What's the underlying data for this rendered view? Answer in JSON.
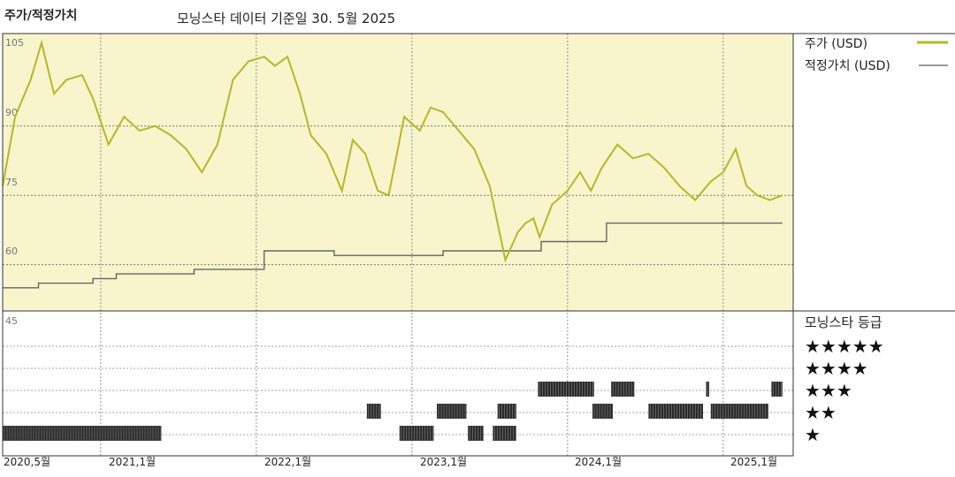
{
  "chart_data": {
    "type": "line",
    "title": "주가/적정가치",
    "subtitle": "모닝스타 데이터 기준일 30. 5월 2025",
    "ylim": [
      45,
      110
    ],
    "y_ticks": [
      "105",
      "90",
      "75",
      "60",
      "45"
    ],
    "x_ticks": [
      "2020,5월",
      "2021,1월",
      "2022,1월",
      "2023,1월",
      "2024,1월",
      "2025,1월"
    ],
    "legend": [
      {
        "label": "주가 (USD)",
        "color": "#b5b82a"
      },
      {
        "label": "적정가치 (USD)",
        "color": "#777777"
      }
    ],
    "price": {
      "name": "주가 (USD)",
      "x": [
        2020.37,
        2020.45,
        2020.55,
        2020.62,
        2020.7,
        2020.78,
        2020.88,
        2020.95,
        2021.05,
        2021.15,
        2021.25,
        2021.35,
        2021.45,
        2021.55,
        2021.65,
        2021.75,
        2021.85,
        2021.95,
        2022.05,
        2022.12,
        2022.2,
        2022.28,
        2022.35,
        2022.45,
        2022.55,
        2022.62,
        2022.7,
        2022.78,
        2022.85,
        2022.95,
        2023.05,
        2023.12,
        2023.2,
        2023.3,
        2023.4,
        2023.5,
        2023.6,
        2023.68,
        2023.73,
        2023.78,
        2023.82,
        2023.9,
        2024.0,
        2024.08,
        2024.15,
        2024.22,
        2024.32,
        2024.42,
        2024.52,
        2024.62,
        2024.72,
        2024.82,
        2024.92,
        2025.0,
        2025.08,
        2025.15,
        2025.22,
        2025.3,
        2025.38
      ],
      "y": [
        77,
        92,
        100,
        108,
        97,
        100,
        101,
        96,
        86,
        92,
        89,
        90,
        88,
        85,
        80,
        86,
        100,
        104,
        105,
        103,
        105,
        97,
        88,
        84,
        76,
        87,
        84,
        76,
        75,
        92,
        89,
        94,
        93,
        89,
        85,
        77,
        61,
        67,
        69,
        70,
        66,
        73,
        76,
        80,
        76,
        81,
        86,
        83,
        84,
        81,
        77,
        74,
        78,
        80,
        85,
        77,
        75,
        74,
        75
      ]
    },
    "fair_value": {
      "name": "적정가치 (USD)",
      "x": [
        2020.37,
        2020.6,
        2020.6,
        2020.95,
        2020.95,
        2021.1,
        2021.1,
        2021.6,
        2021.6,
        2022.05,
        2022.05,
        2022.5,
        2022.5,
        2023.2,
        2023.2,
        2023.83,
        2023.83,
        2024.25,
        2024.25,
        2025.38
      ],
      "y": [
        55,
        55,
        56,
        56,
        57,
        57,
        58,
        58,
        59,
        59,
        63,
        63,
        62,
        62,
        63,
        63,
        65,
        65,
        69,
        69
      ]
    },
    "rating": {
      "title": "모닝스타 등급",
      "levels": [
        "★★★★★",
        "★★★★",
        "★★★",
        "★★",
        "★"
      ],
      "segments": [
        {
          "stars": 1,
          "from": 2020.37,
          "to": 2021.39
        },
        {
          "stars": 1,
          "from": 2022.92,
          "to": 2023.14
        },
        {
          "stars": 1,
          "from": 2023.36,
          "to": 2023.46
        },
        {
          "stars": 1,
          "from": 2023.52,
          "to": 2023.67
        },
        {
          "stars": 2,
          "from": 2022.71,
          "to": 2022.8
        },
        {
          "stars": 2,
          "from": 2023.16,
          "to": 2023.35
        },
        {
          "stars": 2,
          "from": 2023.55,
          "to": 2023.67
        },
        {
          "stars": 2,
          "from": 2024.16,
          "to": 2024.29
        },
        {
          "stars": 2,
          "from": 2024.52,
          "to": 2024.87
        },
        {
          "stars": 2,
          "from": 2024.92,
          "to": 2025.29
        },
        {
          "stars": 3,
          "from": 2023.81,
          "to": 2024.17
        },
        {
          "stars": 3,
          "from": 2024.28,
          "to": 2024.43
        },
        {
          "stars": 3,
          "from": 2024.89,
          "to": 2024.91
        },
        {
          "stars": 3,
          "from": 2025.31,
          "to": 2025.38
        }
      ]
    }
  }
}
